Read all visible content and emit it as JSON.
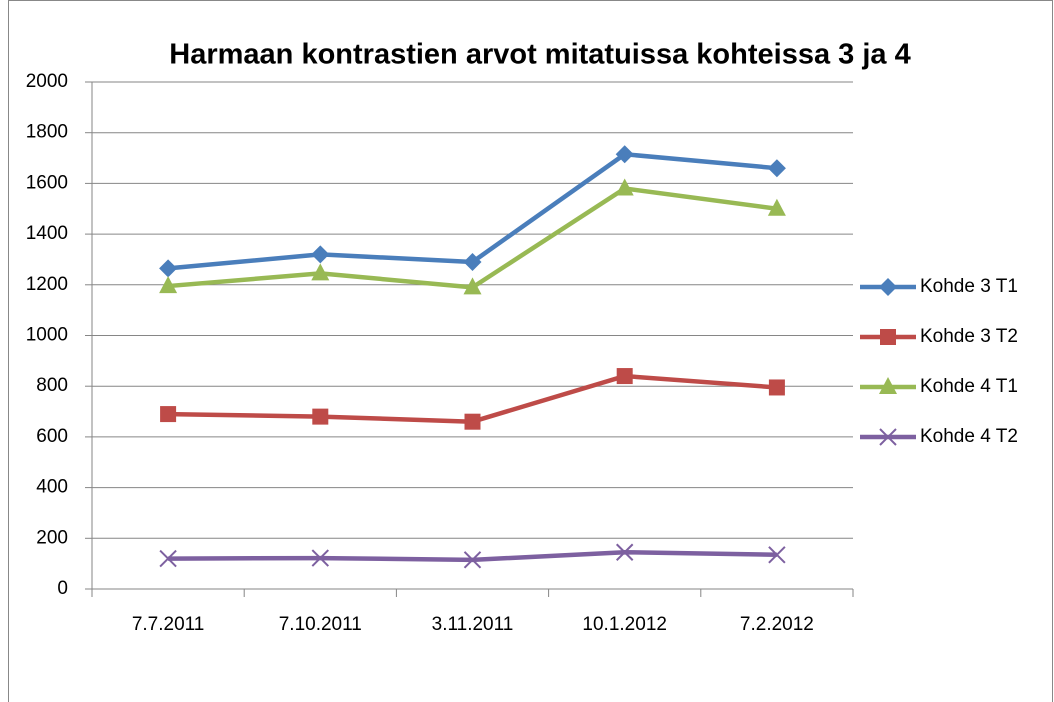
{
  "chart_data": {
    "type": "line",
    "title": "Harmaan kontrastien arvot mitatuissa kohteissa 3 ja 4",
    "categories": [
      "7.7.2011",
      "7.10.2011",
      "3.11.2011",
      "10.1.2012",
      "7.2.2012"
    ],
    "series": [
      {
        "name": "Kohde 3 T1",
        "color": "#4a7ebb",
        "marker": "diamond",
        "values": [
          1265,
          1320,
          1290,
          1715,
          1660
        ]
      },
      {
        "name": "Kohde 3 T2",
        "color": "#be4b48",
        "marker": "square",
        "values": [
          690,
          680,
          660,
          840,
          795
        ]
      },
      {
        "name": "Kohde 4 T1",
        "color": "#98b954",
        "marker": "triangle",
        "values": [
          1195,
          1245,
          1190,
          1580,
          1500
        ]
      },
      {
        "name": "Kohde 4 T2",
        "color": "#7d60a0",
        "marker": "x",
        "values": [
          120,
          122,
          115,
          145,
          135
        ]
      }
    ],
    "ylim": [
      0,
      2000
    ],
    "yticks": [
      0,
      200,
      400,
      600,
      800,
      1000,
      1200,
      1400,
      1600,
      1800,
      2000
    ],
    "grid": true,
    "legend": "right"
  }
}
